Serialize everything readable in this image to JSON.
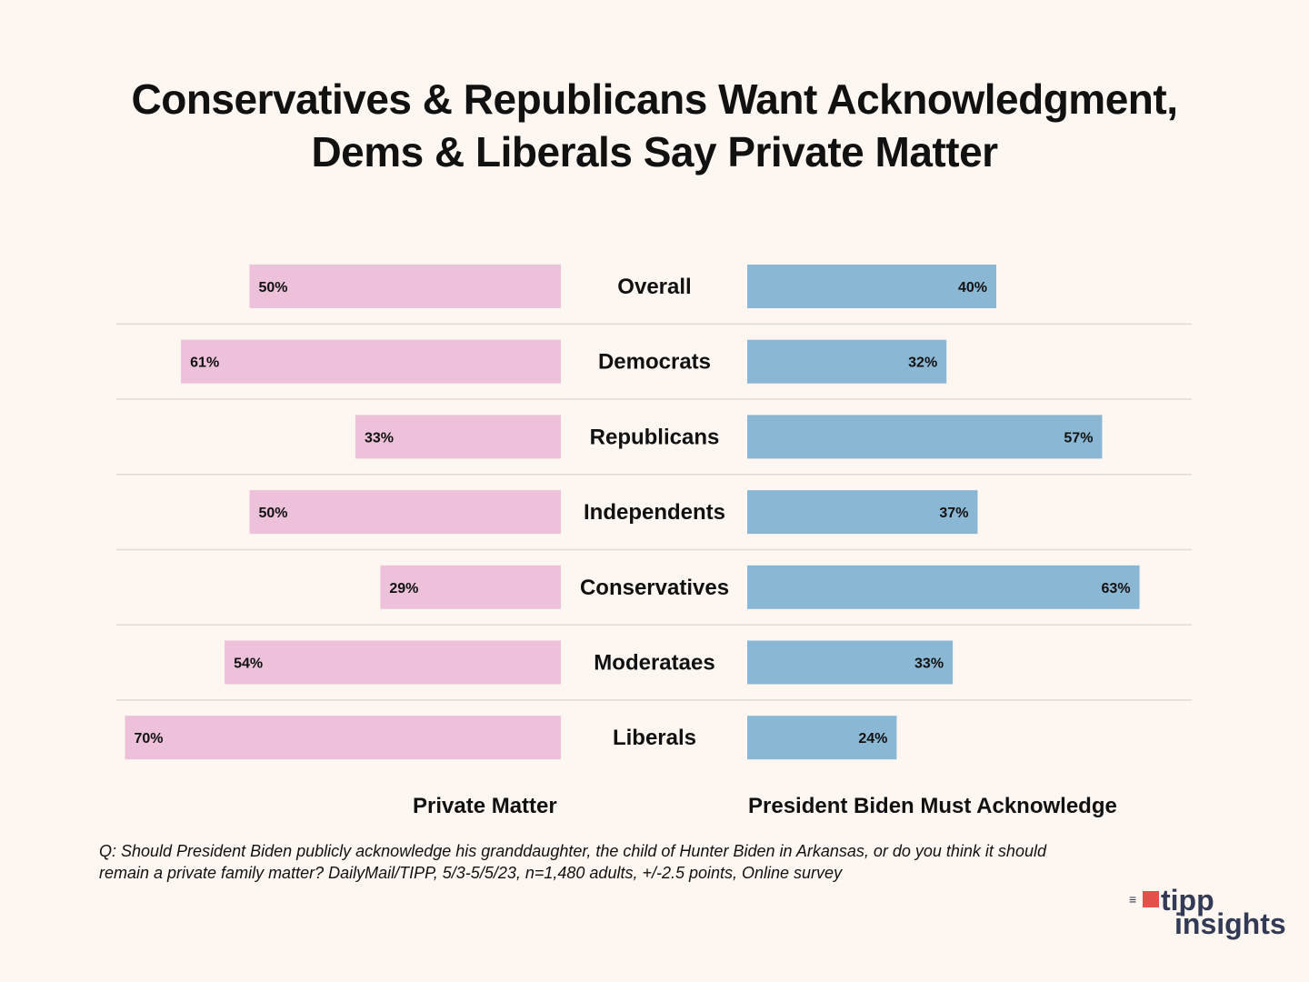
{
  "chart_data": {
    "type": "bar",
    "title": "Conservatives & Republicans Want Acknowledgment,\nDems & Liberals Say Private Matter",
    "title_lines": [
      "Conservatives & Republicans Want Acknowledgment,",
      "Dems & Liberals Say Private Matter"
    ],
    "categories": [
      "Overall",
      "Democrats",
      "Republicans",
      "Independents",
      "Conservatives",
      "Moderataes",
      "Liberals"
    ],
    "series": [
      {
        "name": "Private Matter",
        "values": [
          50,
          61,
          33,
          50,
          29,
          54,
          70
        ],
        "color": "#ecc1d9",
        "direction": "left"
      },
      {
        "name": "President Biden Must Acknowledge",
        "values": [
          40,
          32,
          57,
          37,
          63,
          33,
          24
        ],
        "color": "#8ab8d4",
        "direction": "right"
      }
    ],
    "value_suffix": "%",
    "xlabel_left": "Private Matter",
    "xlabel_right": "President Biden Must Acknowledge",
    "grid": false,
    "row_separators": true
  },
  "footnote": {
    "line1": "Q: Should President Biden publicly acknowledge his  granddaughter, the child of Hunter Biden in Arkansas, or do you think it  should",
    "line2": "remain a private family matter? DailyMail/TIPP, 5/3-5/5/23, n=1,480 adults, +/-2.5 points, Online survey"
  },
  "logo": {
    "line1": "tipp",
    "line2": "insights",
    "icon": "megaphone-icon",
    "accent": "#e2514a",
    "text_color": "#323a55"
  },
  "colors": {
    "background": "#fdf6f1",
    "separator": "#e0dbd8"
  }
}
